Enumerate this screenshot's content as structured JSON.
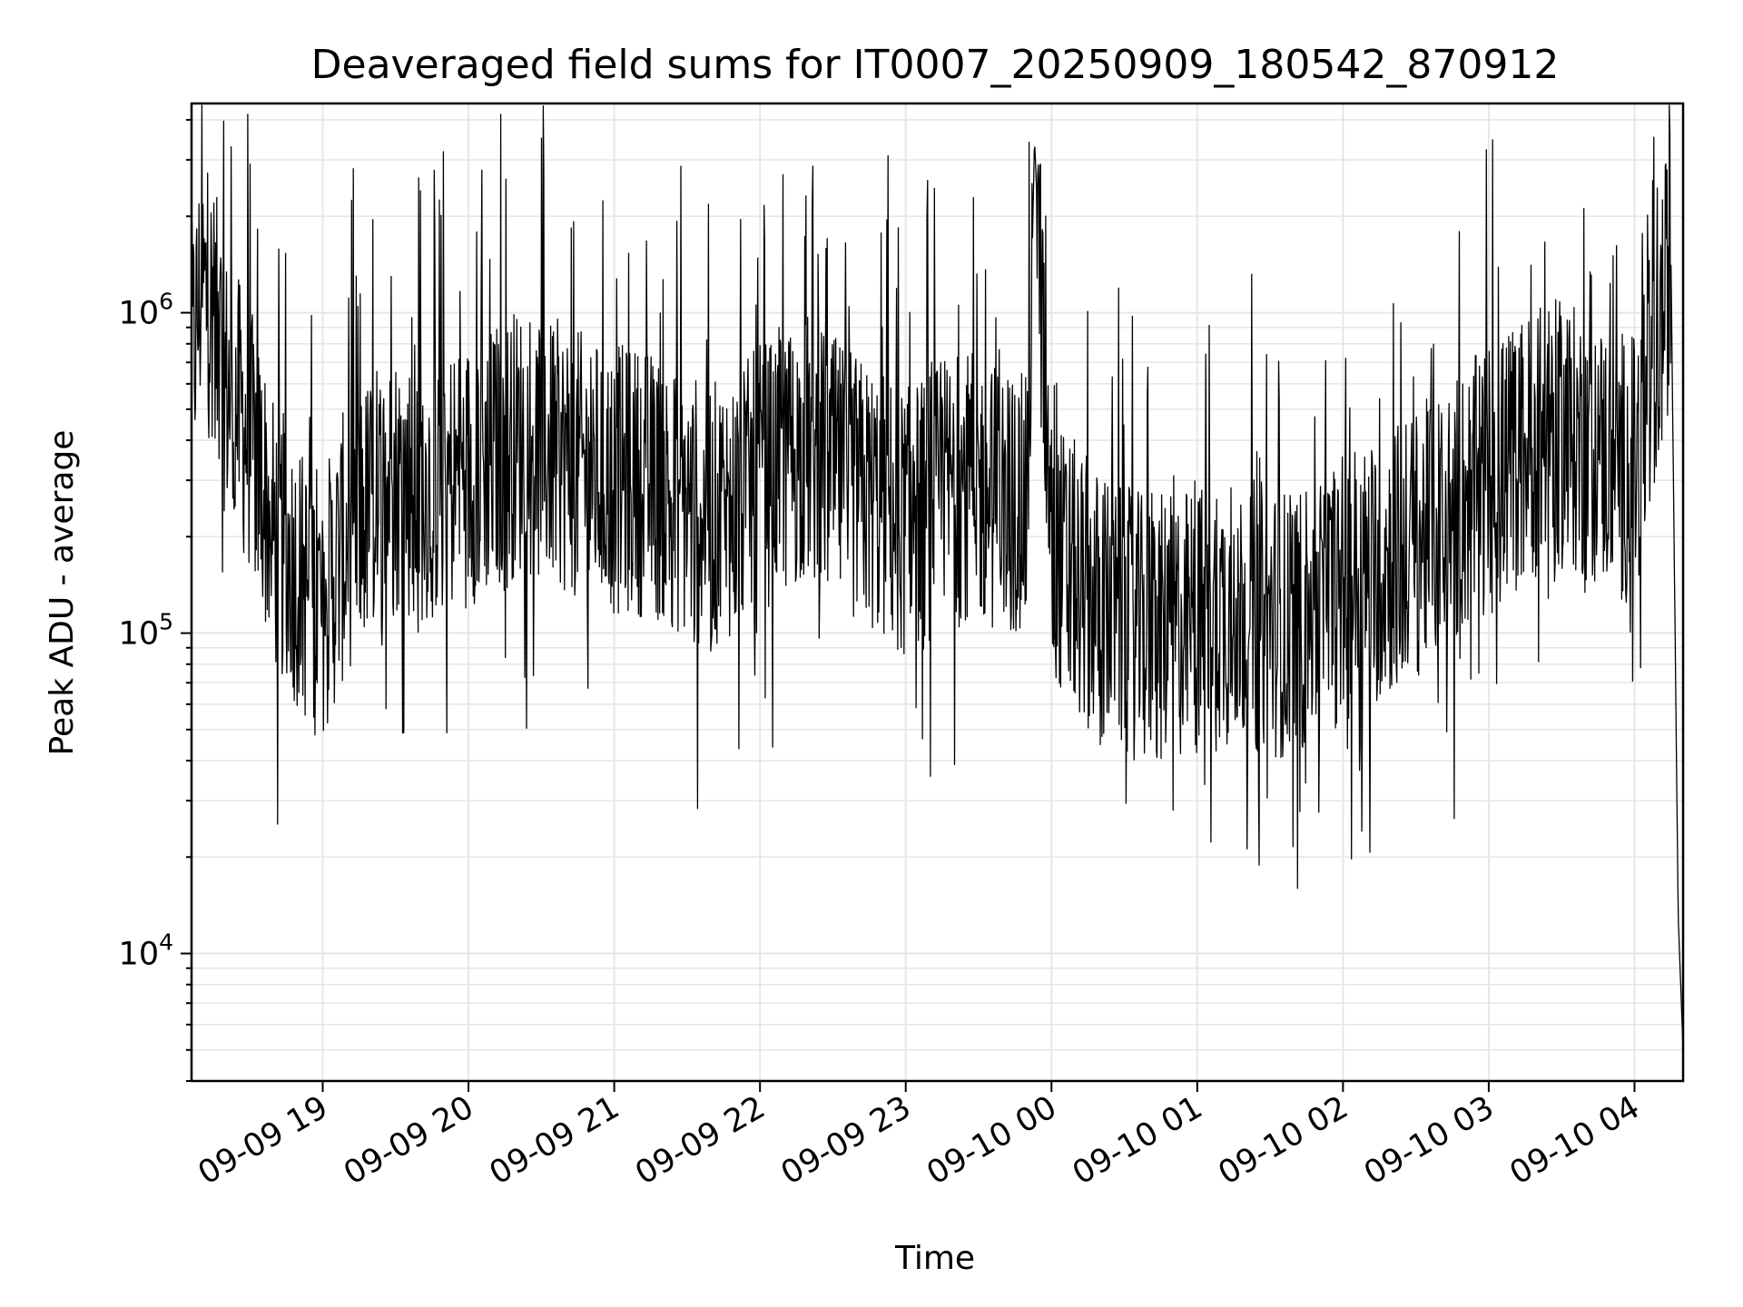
{
  "chart_data": {
    "type": "line",
    "title": "Deaveraged field sums for IT0007_20250909_180542_870912",
    "xlabel": "Time",
    "ylabel": "Peak ADU - average",
    "yscale": "log",
    "ylim": [
      4000,
      4500000
    ],
    "xlim": [
      "2025-09-09 18:06",
      "2025-09-10 04:20"
    ],
    "grid": true,
    "line_color": "#000000",
    "grid_color": "#e6e6e6",
    "x_ticks": [
      {
        "t": "2025-09-09 19:00",
        "label": "09-09 19"
      },
      {
        "t": "2025-09-09 20:00",
        "label": "09-09 20"
      },
      {
        "t": "2025-09-09 21:00",
        "label": "09-09 21"
      },
      {
        "t": "2025-09-09 22:00",
        "label": "09-09 22"
      },
      {
        "t": "2025-09-09 23:00",
        "label": "09-09 23"
      },
      {
        "t": "2025-09-10 00:00",
        "label": "09-10 00"
      },
      {
        "t": "2025-09-10 01:00",
        "label": "09-10 01"
      },
      {
        "t": "2025-09-10 02:00",
        "label": "09-10 02"
      },
      {
        "t": "2025-09-10 03:00",
        "label": "09-10 03"
      },
      {
        "t": "2025-09-10 04:00",
        "label": "09-10 04"
      }
    ],
    "y_ticks": [
      {
        "value": 10000,
        "base": "10",
        "exp": "4"
      },
      {
        "value": 100000,
        "base": "10",
        "exp": "5"
      },
      {
        "value": 1000000,
        "base": "10",
        "exp": "6"
      }
    ],
    "series": [
      {
        "x": [
          "2025-09-09 18:06",
          "2025-09-09 18:10",
          "2025-09-09 18:15",
          "2025-09-09 18:20",
          "2025-09-09 18:25",
          "2025-09-09 18:30",
          "2025-09-09 18:35",
          "2025-09-09 18:40",
          "2025-09-09 18:45",
          "2025-09-09 18:50",
          "2025-09-09 18:55",
          "2025-09-09 19:00",
          "2025-09-09 19:10",
          "2025-09-09 19:20",
          "2025-09-09 19:30",
          "2025-09-09 19:40",
          "2025-09-09 19:50",
          "2025-09-09 20:00",
          "2025-09-09 20:10",
          "2025-09-09 20:20",
          "2025-09-09 20:30",
          "2025-09-09 20:40",
          "2025-09-09 20:50",
          "2025-09-09 21:00",
          "2025-09-09 21:10",
          "2025-09-09 21:20",
          "2025-09-09 21:30",
          "2025-09-09 21:40",
          "2025-09-09 21:50",
          "2025-09-09 22:00",
          "2025-09-09 22:10",
          "2025-09-09 22:20",
          "2025-09-09 22:30",
          "2025-09-09 22:40",
          "2025-09-09 22:50",
          "2025-09-09 23:00",
          "2025-09-09 23:10",
          "2025-09-09 23:20",
          "2025-09-09 23:30",
          "2025-09-09 23:40",
          "2025-09-09 23:50",
          "2025-09-09 23:53",
          "2025-09-10 00:00",
          "2025-09-10 00:10",
          "2025-09-10 00:20",
          "2025-09-10 00:30",
          "2025-09-10 00:40",
          "2025-09-10 00:50",
          "2025-09-10 01:00",
          "2025-09-10 01:10",
          "2025-09-10 01:20",
          "2025-09-10 01:30",
          "2025-09-10 01:40",
          "2025-09-10 01:50",
          "2025-09-10 02:00",
          "2025-09-10 02:10",
          "2025-09-10 02:20",
          "2025-09-10 02:30",
          "2025-09-10 02:40",
          "2025-09-10 02:50",
          "2025-09-10 03:00",
          "2025-09-10 03:10",
          "2025-09-10 03:20",
          "2025-09-10 03:30",
          "2025-09-10 03:40",
          "2025-09-10 03:50",
          "2025-09-10 04:00",
          "2025-09-10 04:05",
          "2025-09-10 04:10",
          "2025-09-10 04:15",
          "2025-09-10 04:18",
          "2025-09-10 04:20"
        ],
        "y": [
          700000,
          1200000,
          1000000,
          600000,
          500000,
          400000,
          300000,
          200000,
          180000,
          150000,
          130000,
          120000,
          200000,
          250000,
          300000,
          280000,
          300000,
          320000,
          350000,
          400000,
          380000,
          350000,
          320000,
          300000,
          300000,
          280000,
          250000,
          230000,
          250000,
          300000,
          350000,
          380000,
          320000,
          280000,
          250000,
          220000,
          250000,
          300000,
          280000,
          260000,
          240000,
          3500000,
          180000,
          150000,
          120000,
          110000,
          100000,
          105000,
          110000,
          115000,
          120000,
          110000,
          105000,
          120000,
          140000,
          150000,
          170000,
          190000,
          220000,
          260000,
          300000,
          350000,
          400000,
          420000,
          380000,
          350000,
          320000,
          500000,
          800000,
          1500000,
          13000,
          5000
        ]
      }
    ]
  }
}
